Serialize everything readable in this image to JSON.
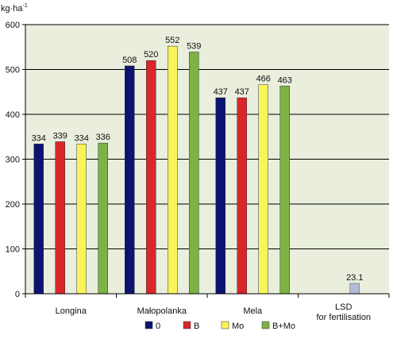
{
  "chart_data": {
    "type": "bar",
    "ylabel": "kg·ha",
    "ylabel_sup": "-1",
    "ylim": [
      0,
      600
    ],
    "yticks": [
      0,
      100,
      200,
      300,
      400,
      500,
      600
    ],
    "grid": true,
    "groups": [
      {
        "label": "Longina",
        "values": [
          334,
          339,
          334,
          336
        ]
      },
      {
        "label": "Małopolanka",
        "values": [
          508,
          520,
          552,
          539
        ]
      },
      {
        "label": "Mela",
        "values": [
          437,
          437,
          466,
          463
        ]
      }
    ],
    "lsd": {
      "label_line1": "LSD",
      "label_line2": "for fertilisation",
      "value": 23.1
    },
    "series": [
      {
        "name": "0",
        "color": "#0b1470"
      },
      {
        "name": "B",
        "color": "#d9262b"
      },
      {
        "name": "Mo",
        "color": "#f8f45a"
      },
      {
        "name": "B+Mo",
        "color": "#7cb342"
      }
    ],
    "lsd_color": "#b4bbd6",
    "plot_background": "#e9eedd",
    "legend_position": "bottom"
  }
}
